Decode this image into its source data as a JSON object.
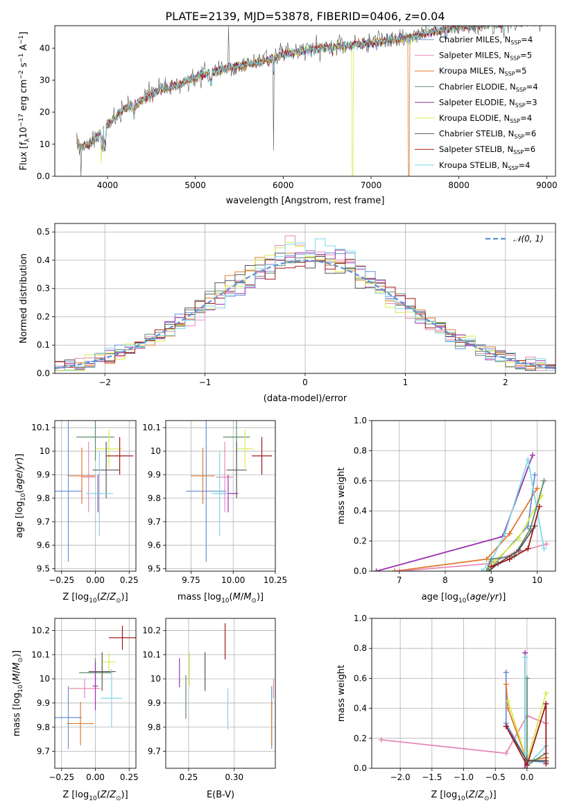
{
  "title": "PLATE=2139, MJD=53878, FIBERID=0406, z=0.04",
  "colors": {
    "Chabrier MILES": "#6b8fd6",
    "Salpeter MILES": "#e68ab8",
    "Kroupa MILES": "#e0782b",
    "Chabrier ELODIE": "#5f8a6a",
    "Salpeter ELODIE": "#9b2fae",
    "Kroupa ELODIE": "#d9eb4a",
    "Chabrier STELIB": "#555555",
    "Salpeter STELIB": "#a01818",
    "Kroupa STELIB": "#7fd8e6"
  },
  "chart_data": [
    {
      "id": "spectrum",
      "type": "line",
      "xlabel": "wavelength [Angstrom, rest frame]",
      "ylabel": "Flux [f_λ 10^-17 erg cm^-2 s^-1 A^-1]",
      "xlim": [
        3400,
        9100
      ],
      "ylim": [
        0,
        47
      ],
      "xticks": [
        4000,
        5000,
        6000,
        7000,
        8000,
        9000
      ],
      "yticks": [
        0,
        10,
        20,
        30,
        40
      ],
      "legend_placement": "upper-right",
      "legend": [
        {
          "name": "Chabrier MILES",
          "nssp": "4"
        },
        {
          "name": "Salpeter MILES",
          "nssp": "5"
        },
        {
          "name": "Kroupa MILES",
          "nssp": "5"
        },
        {
          "name": "Chabrier ELODIE",
          "nssp": "4"
        },
        {
          "name": "Salpeter ELODIE",
          "nssp": "3"
        },
        {
          "name": "Kroupa ELODIE",
          "nssp": "4"
        },
        {
          "name": "Chabrier STELIB",
          "nssp": "6"
        },
        {
          "name": "Salpeter STELIB",
          "nssp": "6"
        },
        {
          "name": "Kroupa STELIB",
          "nssp": "4"
        }
      ],
      "legend_nssp_label": "N",
      "legend_nssp_sub": "SSP",
      "anchors_x": [
        3650,
        3700,
        3800,
        3900,
        4000,
        4100,
        4200,
        4300,
        4400,
        4500,
        4600,
        4700,
        4800,
        4900,
        5000,
        5100,
        5200,
        5300,
        5400,
        5500,
        5600,
        5700,
        5800,
        5900,
        6000,
        6200,
        6400,
        6600,
        6800,
        7000,
        7200,
        7400,
        7600,
        7800,
        8000,
        8200,
        8400,
        8600,
        8800,
        9000
      ],
      "anchors_y": [
        11,
        9,
        10,
        13,
        16,
        18.5,
        21,
        22,
        24,
        25.5,
        27,
        27.5,
        28.5,
        29.5,
        31,
        32,
        32.5,
        33,
        34,
        34.5,
        35,
        35.5,
        36,
        37,
        38,
        39,
        40,
        40.5,
        41,
        41.5,
        42.5,
        43,
        44.5,
        45.5,
        46.5,
        47,
        47.5,
        48,
        48.5,
        49
      ],
      "spike_x": [
        3700,
        3930,
        5380,
        5890,
        6790,
        7430
      ],
      "spike_y": [
        0,
        4,
        47,
        8,
        0,
        0
      ]
    },
    {
      "id": "residuals",
      "type": "line",
      "xlabel": "(data-model)/error",
      "ylabel": "Normed distribution",
      "xlim": [
        -2.5,
        2.5
      ],
      "ylim": [
        0,
        0.53
      ],
      "xticks": [
        -2,
        -1,
        0,
        1,
        2
      ],
      "xtick_labels": [
        "−2",
        "−1",
        "0",
        "1",
        "2"
      ],
      "yticks": [
        0.0,
        0.1,
        0.2,
        0.3,
        0.4,
        0.5
      ],
      "ytick_labels": [
        "0.0",
        "0.1",
        "0.2",
        "0.3",
        "0.4",
        "0.5"
      ],
      "grid": true,
      "legend_placement": "upper-right",
      "curve_label": "𝒩(0, 1)",
      "bin_width": 0.1
    },
    {
      "id": "age_vs_Z",
      "type": "scatter",
      "xlabel": "Z [log10(Z/Z⊙)]",
      "ylabel": "age  [log10(age/yr)]",
      "xlim": [
        -0.3,
        0.3
      ],
      "ylim": [
        9.49,
        10.13
      ],
      "xticks": [
        -0.25,
        0.0,
        0.25
      ],
      "xtick_labels": [
        "−0.25",
        "0.00",
        "0.25"
      ],
      "yticks": [
        9.5,
        9.6,
        9.7,
        9.8,
        9.9,
        10.0,
        10.1
      ],
      "grid": true,
      "points": [
        {
          "model": "Chabrier MILES",
          "x": -0.2,
          "xerr": 0.1,
          "y": 9.83,
          "yerr": 0.3
        },
        {
          "model": "Salpeter MILES",
          "x": -0.05,
          "xerr": 0.05,
          "y": 9.89,
          "yerr": 0.15
        },
        {
          "model": "Kroupa MILES",
          "x": -0.1,
          "xerr": 0.1,
          "y": 9.895,
          "yerr": 0.12
        },
        {
          "model": "Chabrier ELODIE",
          "x": 0.0,
          "xerr": 0.14,
          "y": 10.06,
          "yerr": 0.1
        },
        {
          "model": "Salpeter ELODIE",
          "x": 0.02,
          "xerr": 0.03,
          "y": 9.82,
          "yerr": 0.08
        },
        {
          "model": "Kroupa ELODIE",
          "x": 0.1,
          "xerr": 0.1,
          "y": 10.01,
          "yerr": 0.08
        },
        {
          "model": "Chabrier STELIB",
          "x": 0.08,
          "xerr": 0.1,
          "y": 9.92,
          "yerr": 0.12
        },
        {
          "model": "Salpeter STELIB",
          "x": 0.18,
          "xerr": 0.1,
          "y": 9.98,
          "yerr": 0.08
        },
        {
          "model": "Kroupa STELIB",
          "x": 0.03,
          "xerr": 0.1,
          "y": 9.82,
          "yerr": 0.18
        }
      ]
    },
    {
      "id": "age_vs_mass",
      "type": "scatter",
      "xlabel": "mass [log10(M/M⊙)]",
      "ylabel": "",
      "xlim": [
        9.6,
        10.25
      ],
      "ylim": [
        9.49,
        10.13
      ],
      "xticks": [
        9.75,
        10.0,
        10.25
      ],
      "xtick_labels": [
        "9.75",
        "10.00",
        "10.25"
      ],
      "yticks": [
        9.5,
        9.6,
        9.7,
        9.8,
        9.9,
        10.0,
        10.1
      ],
      "grid": true,
      "points": [
        {
          "model": "Chabrier MILES",
          "x": 9.84,
          "xerr": 0.12,
          "y": 9.83,
          "yerr": 0.3
        },
        {
          "model": "Salpeter MILES",
          "x": 9.95,
          "xerr": 0.05,
          "y": 9.89,
          "yerr": 0.15
        },
        {
          "model": "Kroupa MILES",
          "x": 9.82,
          "xerr": 0.07,
          "y": 9.895,
          "yerr": 0.12
        },
        {
          "model": "Chabrier ELODIE",
          "x": 10.02,
          "xerr": 0.08,
          "y": 10.06,
          "yerr": 0.1
        },
        {
          "model": "Salpeter ELODIE",
          "x": 9.97,
          "xerr": 0.06,
          "y": 9.82,
          "yerr": 0.08
        },
        {
          "model": "Kroupa ELODIE",
          "x": 10.07,
          "xerr": 0.05,
          "y": 10.01,
          "yerr": 0.08
        },
        {
          "model": "Chabrier STELIB",
          "x": 10.02,
          "xerr": 0.06,
          "y": 9.92,
          "yerr": 0.12
        },
        {
          "model": "Salpeter STELIB",
          "x": 10.17,
          "xerr": 0.06,
          "y": 9.98,
          "yerr": 0.08
        },
        {
          "model": "Kroupa STELIB",
          "x": 9.92,
          "xerr": 0.05,
          "y": 9.82,
          "yerr": 0.18
        }
      ]
    },
    {
      "id": "weight_vs_age",
      "type": "line",
      "xlabel": "age  [log10(age/yr)]",
      "ylabel": "mass weight",
      "xlim": [
        6.4,
        10.4
      ],
      "ylim": [
        0,
        1
      ],
      "xticks": [
        7,
        8,
        9,
        10
      ],
      "yticks": [
        0.0,
        0.2,
        0.4,
        0.6,
        0.8,
        1.0
      ],
      "grid": true,
      "series": [
        {
          "model": "Salpeter ELODIE",
          "x": [
            6.5,
            9.25,
            9.9
          ],
          "y": [
            0.0,
            0.23,
            0.77
          ]
        },
        {
          "model": "Kroupa MILES",
          "x": [
            6.9,
            8.9,
            9.4,
            10.0
          ],
          "y": [
            0.0,
            0.08,
            0.25,
            0.55
          ]
        },
        {
          "model": "Salpeter MILES",
          "x": [
            7.0,
            8.95,
            9.5,
            10.2
          ],
          "y": [
            0.0,
            0.05,
            0.12,
            0.18
          ]
        },
        {
          "model": "Chabrier MILES",
          "x": [
            8.9,
            9.1,
            9.8,
            9.95
          ],
          "y": [
            0.0,
            0.06,
            0.3,
            0.64
          ]
        },
        {
          "model": "Kroupa STELIB",
          "x": [
            8.8,
            9.0,
            9.3,
            9.8,
            10.15
          ],
          "y": [
            0.0,
            0.07,
            0.25,
            0.74,
            0.15
          ]
        },
        {
          "model": "Kroupa ELODIE",
          "x": [
            8.9,
            9.1,
            9.6,
            10.1
          ],
          "y": [
            0.0,
            0.07,
            0.22,
            0.5
          ]
        },
        {
          "model": "Chabrier ELODIE",
          "x": [
            8.9,
            9.0,
            9.5,
            9.85,
            10.15
          ],
          "y": [
            0.0,
            0.08,
            0.1,
            0.28,
            0.6
          ]
        },
        {
          "model": "Chabrier STELIB",
          "x": [
            8.95,
            9.15,
            9.6,
            9.95
          ],
          "y": [
            0.0,
            0.05,
            0.14,
            0.3
          ]
        },
        {
          "model": "Salpeter STELIB",
          "x": [
            9.0,
            9.4,
            9.8,
            10.05
          ],
          "y": [
            0.03,
            0.08,
            0.15,
            0.43
          ]
        }
      ]
    },
    {
      "id": "mass_vs_Z",
      "type": "scatter",
      "xlabel": "Z [log10(Z/Z⊙)]",
      "ylabel": "mass [log10(M/M⊙)]",
      "xlim": [
        -0.3,
        0.3
      ],
      "ylim": [
        9.63,
        10.25
      ],
      "xticks": [
        -0.25,
        0.0,
        0.25
      ],
      "xtick_labels": [
        "−0.25",
        "0.00",
        "0.25"
      ],
      "yticks": [
        9.7,
        9.8,
        9.9,
        10.0,
        10.1,
        10.2
      ],
      "grid": true,
      "points": [
        {
          "model": "Chabrier MILES",
          "x": -0.2,
          "xerr": 0.1,
          "y": 9.84,
          "yerr": 0.13
        },
        {
          "model": "Salpeter MILES",
          "x": -0.08,
          "xerr": 0.12,
          "y": 9.96,
          "yerr": 0.04
        },
        {
          "model": "Kroupa MILES",
          "x": -0.11,
          "xerr": 0.1,
          "y": 9.815,
          "yerr": 0.09
        },
        {
          "model": "Chabrier ELODIE",
          "x": 0.0,
          "xerr": 0.12,
          "y": 10.025,
          "yerr": 0.06
        },
        {
          "model": "Salpeter ELODIE",
          "x": 0.0,
          "xerr": 0.02,
          "y": 9.97,
          "yerr": 0.1
        },
        {
          "model": "Kroupa ELODIE",
          "x": 0.1,
          "xerr": 0.05,
          "y": 10.07,
          "yerr": 0.04
        },
        {
          "model": "Chabrier STELIB",
          "x": 0.05,
          "xerr": 0.1,
          "y": 10.03,
          "yerr": 0.08
        },
        {
          "model": "Salpeter STELIB",
          "x": 0.2,
          "xerr": 0.1,
          "y": 10.17,
          "yerr": 0.05
        },
        {
          "model": "Kroupa STELIB",
          "x": 0.12,
          "xerr": 0.08,
          "y": 9.92,
          "yerr": 0.12
        }
      ]
    },
    {
      "id": "mass_vs_ebv",
      "type": "scatter",
      "xlabel": "E(B-V)",
      "ylabel": "",
      "xlim": [
        0.225,
        0.345
      ],
      "ylim": [
        9.63,
        10.25
      ],
      "xticks": [
        0.25,
        0.3
      ],
      "xtick_labels": [
        "0.25",
        "0.30"
      ],
      "yticks": [
        9.7,
        9.8,
        9.9,
        10.0,
        10.1,
        10.2
      ],
      "grid": true,
      "points": [
        {
          "model": "Chabrier MILES",
          "x": 0.341,
          "y": 9.84,
          "yerr": 0.13
        },
        {
          "model": "Kroupa MILES",
          "x": 0.341,
          "y": 9.815,
          "yerr": 0.09
        },
        {
          "model": "Salpeter MILES",
          "x": 0.343,
          "y": 9.96,
          "yerr": 0.04
        },
        {
          "model": "Chabrier ELODIE",
          "x": 0.247,
          "y": 9.925,
          "yerr": 0.09
        },
        {
          "model": "Salpeter ELODIE",
          "x": 0.24,
          "y": 10.025,
          "yerr": 0.06
        },
        {
          "model": "Kroupa ELODIE",
          "x": 0.251,
          "y": 10.04,
          "yerr": 0.07
        },
        {
          "model": "Chabrier STELIB",
          "x": 0.268,
          "y": 10.03,
          "yerr": 0.08
        },
        {
          "model": "Salpeter STELIB",
          "x": 0.29,
          "y": 10.155,
          "yerr": 0.075
        },
        {
          "model": "Kroupa STELIB",
          "x": 0.293,
          "y": 9.875,
          "yerr": 0.085
        }
      ]
    },
    {
      "id": "weight_vs_Z",
      "type": "line",
      "xlabel": "Z [log10(Z/Z⊙)]",
      "ylabel": "mass weight",
      "xlim": [
        -2.45,
        0.45
      ],
      "ylim": [
        0,
        1
      ],
      "xticks": [
        -2.0,
        -1.5,
        -1.0,
        -0.5,
        0.0
      ],
      "xtick_labels": [
        "−2.0",
        "−1.5",
        "−1.0",
        "−0.5",
        "0.0"
      ],
      "yticks": [
        0.0,
        0.2,
        0.4,
        0.6,
        0.8,
        1.0
      ],
      "grid": true,
      "series": [
        {
          "model": "Salpeter MILES",
          "x": [
            -2.3,
            -0.33,
            0.0,
            0.3
          ],
          "y": [
            0.19,
            0.1,
            0.35,
            0.3
          ]
        },
        {
          "model": "Chabrier MILES",
          "x": [
            -0.33,
            -0.33,
            0.0,
            0.3
          ],
          "y": [
            0.64,
            0.3,
            0.05,
            0.04
          ]
        },
        {
          "model": "Kroupa MILES",
          "x": [
            -0.33,
            -0.3,
            0.0,
            0.3
          ],
          "y": [
            0.56,
            0.4,
            0.05,
            0.07
          ]
        },
        {
          "model": "Salpeter ELODIE",
          "x": [
            -0.03,
            -0.03
          ],
          "y": [
            0.77,
            0.0
          ]
        },
        {
          "model": "Kroupa ELODIE",
          "x": [
            -0.3,
            0.0,
            0.3
          ],
          "y": [
            0.45,
            0.05,
            0.5
          ]
        },
        {
          "model": "Chabrier ELODIE",
          "x": [
            0.0,
            0.0,
            0.3
          ],
          "y": [
            0.6,
            0.02,
            0.1
          ]
        },
        {
          "model": "Kroupa STELIB",
          "x": [
            -0.03,
            -0.03,
            0.0,
            0.3
          ],
          "y": [
            0.74,
            0.1,
            0.02,
            0.15
          ]
        },
        {
          "model": "Chabrier STELIB",
          "x": [
            -0.33,
            0.0,
            0.3
          ],
          "y": [
            0.28,
            0.05,
            0.05
          ]
        },
        {
          "model": "Salpeter STELIB",
          "x": [
            -0.33,
            0.0,
            0.3,
            0.3
          ],
          "y": [
            0.28,
            0.02,
            0.43,
            0.03
          ]
        }
      ]
    }
  ]
}
